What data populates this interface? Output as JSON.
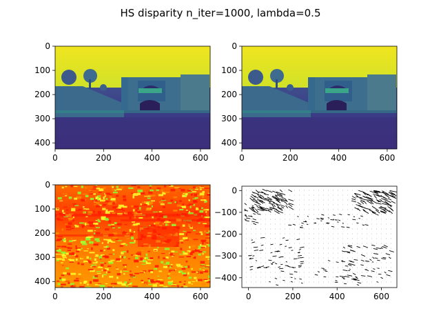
{
  "figure": {
    "title": "HS disparity n_iter=1000, lambda=0.5"
  },
  "chart_data": [
    {
      "type": "image",
      "panel": "top-left",
      "content": "grayscale photo (viridis colormap) of stone gate with trees",
      "colormap": "viridis",
      "xlim": [
        0,
        640
      ],
      "ylim": [
        425,
        0
      ],
      "xticks": [
        0,
        200,
        400,
        600
      ],
      "yticks": [
        0,
        100,
        200,
        300,
        400
      ]
    },
    {
      "type": "image",
      "panel": "top-right",
      "content": "second view of the same scene (viridis colormap)",
      "colormap": "viridis",
      "xlim": [
        0,
        640
      ],
      "ylim": [
        425,
        0
      ],
      "xticks": [
        0,
        200,
        400,
        600
      ],
      "yticks": [
        0,
        100,
        200,
        300,
        400
      ]
    },
    {
      "type": "heatmap",
      "panel": "bottom-left",
      "content": "disparity map (hsv-like colormap: red/yellow/green)",
      "colormap": "hsv",
      "xlim": [
        0,
        640
      ],
      "ylim": [
        425,
        0
      ],
      "xticks": [
        0,
        200,
        400,
        600
      ],
      "yticks": [
        0,
        100,
        200,
        300,
        400
      ]
    },
    {
      "type": "quiver",
      "panel": "bottom-right",
      "content": "flow vector field (black arrows)",
      "xlim": [
        -30,
        670
      ],
      "ylim": [
        -445,
        20
      ],
      "xticks": [
        0,
        200,
        400,
        600
      ],
      "yticks": [
        0,
        -100,
        -200,
        -300,
        -400
      ]
    }
  ],
  "tick_labels": {
    "img_x": [
      "0",
      "200",
      "400",
      "600"
    ],
    "img_y": [
      "0",
      "100",
      "200",
      "300",
      "400"
    ],
    "quiver_x": [
      "0",
      "200",
      "400",
      "600"
    ],
    "quiver_y": [
      "0",
      "−100",
      "−200",
      "−300",
      "−400"
    ]
  },
  "colors": {
    "viridis_sky": "#d6e52b",
    "viridis_mid": "#2a8f8a",
    "viridis_dark": "#3c3b8a",
    "hsv_red": "#ff1a00",
    "hsv_orange": "#ff8a00",
    "hsv_yellow": "#ffff2a",
    "hsv_green": "#8cff33"
  }
}
